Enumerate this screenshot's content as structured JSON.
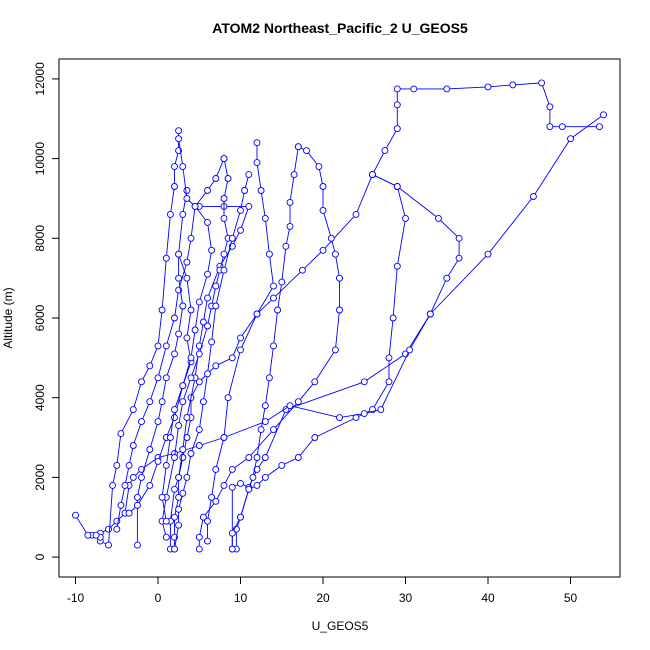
{
  "chart_data": {
    "type": "scatter",
    "title": "ATOM2 Northeast_Pacific_2 U_GEOS5",
    "xlabel": "U_GEOS5",
    "ylabel": "Altitude (m)",
    "xlim": [
      -12,
      56
    ],
    "ylim": [
      -500,
      12500
    ],
    "x_ticks": [
      -10,
      0,
      10,
      20,
      30,
      40,
      50
    ],
    "y_ticks": [
      0,
      2000,
      4000,
      6000,
      8000,
      10000,
      12000
    ],
    "grid": false,
    "color": "#0000ff",
    "series": [
      {
        "values": [
          [
            54,
            11100
          ],
          [
            50,
            10500
          ],
          [
            45.5,
            9050
          ],
          [
            40,
            7600
          ],
          [
            33,
            6100
          ],
          [
            30,
            5100
          ],
          [
            25,
            4400
          ],
          [
            15.5,
            3700
          ],
          [
            13,
            2500
          ],
          [
            12,
            2200
          ],
          [
            11,
            1750
          ],
          [
            10,
            1850
          ],
          [
            9,
            1750
          ],
          [
            9,
            200
          ]
        ]
      },
      {
        "values": [
          [
            53.5,
            10800
          ],
          [
            49,
            10800
          ],
          [
            47.5,
            10800
          ],
          [
            47.5,
            11300
          ],
          [
            46.5,
            11900
          ],
          [
            43,
            11850
          ],
          [
            40,
            11800
          ],
          [
            35,
            11750
          ],
          [
            31,
            11750
          ],
          [
            29,
            11750
          ],
          [
            29,
            11350
          ],
          [
            29,
            10750
          ],
          [
            27.5,
            10200
          ],
          [
            26,
            9600
          ],
          [
            24,
            8600
          ],
          [
            20,
            7700
          ],
          [
            17.5,
            7200
          ],
          [
            14,
            6500
          ],
          [
            12,
            6100
          ],
          [
            10,
            5500
          ],
          [
            9,
            5000
          ],
          [
            7,
            4800
          ],
          [
            5,
            4400
          ],
          [
            4,
            4000
          ],
          [
            4,
            3500
          ],
          [
            3.5,
            3000
          ],
          [
            3,
            2500
          ],
          [
            2.5,
            2000
          ],
          [
            2.5,
            1500
          ],
          [
            2,
            1000
          ],
          [
            2,
            500
          ],
          [
            2,
            200
          ]
        ]
      },
      {
        "values": [
          [
            26,
            9600
          ],
          [
            29,
            9300
          ],
          [
            30,
            8500
          ],
          [
            29,
            7300
          ],
          [
            28.5,
            6000
          ],
          [
            28,
            5000
          ],
          [
            28,
            4400
          ],
          [
            26,
            3700
          ],
          [
            24,
            3500
          ],
          [
            19,
            3000
          ],
          [
            17,
            2500
          ],
          [
            15,
            2300
          ],
          [
            13,
            2000
          ],
          [
            12,
            1800
          ],
          [
            11,
            1700
          ],
          [
            10,
            1000
          ],
          [
            9.5,
            700
          ],
          [
            9.5,
            200
          ]
        ]
      },
      {
        "values": [
          [
            26,
            9600
          ],
          [
            29,
            9300
          ],
          [
            34,
            8500
          ],
          [
            36.5,
            8000
          ],
          [
            36.5,
            7500
          ],
          [
            35,
            7000
          ],
          [
            33,
            6100
          ],
          [
            30.5,
            5200
          ],
          [
            27,
            3700
          ],
          [
            25,
            3600
          ],
          [
            22,
            3500
          ],
          [
            16,
            3800
          ],
          [
            13,
            3400
          ],
          [
            8,
            3000
          ],
          [
            5,
            2800
          ],
          [
            2,
            2600
          ],
          [
            0,
            2500
          ],
          [
            -2,
            2200
          ],
          [
            -3,
            2000
          ],
          [
            -3.5,
            1800
          ],
          [
            -4,
            1100
          ],
          [
            -5,
            900
          ],
          [
            -6,
            700
          ],
          [
            -7,
            600
          ],
          [
            -8,
            550
          ],
          [
            -8.5,
            550
          ],
          [
            -10,
            1050
          ]
        ]
      },
      {
        "values": [
          [
            2.5,
            10700
          ],
          [
            2.5,
            10200
          ],
          [
            2,
            9800
          ],
          [
            2,
            9300
          ],
          [
            1.5,
            8600
          ],
          [
            1,
            7500
          ],
          [
            0.5,
            6200
          ],
          [
            0,
            5300
          ],
          [
            -1,
            4800
          ],
          [
            -2,
            4400
          ],
          [
            -3,
            3700
          ],
          [
            -4.5,
            3100
          ],
          [
            -5,
            2300
          ],
          [
            -5.5,
            1800
          ],
          [
            -6,
            300
          ],
          [
            -7,
            400
          ],
          [
            -7,
            500
          ],
          [
            -7.5,
            550
          ]
        ]
      },
      {
        "values": [
          [
            5,
            8800
          ],
          [
            8,
            8800
          ],
          [
            11,
            8800
          ],
          [
            10,
            8200
          ],
          [
            9,
            7800
          ],
          [
            7.5,
            7300
          ],
          [
            6,
            6500
          ],
          [
            5.5,
            5900
          ],
          [
            5,
            5300
          ],
          [
            4.5,
            4500
          ],
          [
            3.5,
            3500
          ],
          [
            3,
            2700
          ],
          [
            2.5,
            2000
          ],
          [
            2,
            1700
          ],
          [
            1.5,
            900
          ],
          [
            1.5,
            200
          ]
        ]
      },
      {
        "values": [
          [
            8,
            10000
          ],
          [
            8.5,
            9500
          ],
          [
            8,
            9000
          ],
          [
            8,
            8500
          ],
          [
            8.5,
            8000
          ],
          [
            8,
            7600
          ],
          [
            7.5,
            7200
          ],
          [
            7,
            6800
          ],
          [
            6.5,
            6300
          ],
          [
            6,
            5800
          ],
          [
            5,
            5100
          ],
          [
            4,
            4500
          ],
          [
            3,
            3900
          ],
          [
            2.5,
            3300
          ],
          [
            2,
            2500
          ],
          [
            1,
            1500
          ],
          [
            0.5,
            900
          ],
          [
            1,
            500
          ]
        ]
      },
      {
        "values": [
          [
            17,
            10300
          ],
          [
            18,
            10200
          ],
          [
            19.5,
            9800
          ],
          [
            20,
            9300
          ],
          [
            20,
            8700
          ],
          [
            21,
            8000
          ],
          [
            21.5,
            7600
          ],
          [
            22,
            7000
          ],
          [
            22,
            6200
          ],
          [
            21.5,
            5200
          ],
          [
            19,
            4400
          ],
          [
            17,
            3900
          ],
          [
            14,
            3200
          ],
          [
            11,
            2500
          ],
          [
            9,
            2200
          ],
          [
            8,
            1800
          ],
          [
            7,
            1400
          ],
          [
            5.5,
            1000
          ],
          [
            5,
            500
          ],
          [
            5,
            200
          ]
        ]
      },
      {
        "values": [
          [
            17,
            10300
          ],
          [
            16.5,
            9600
          ],
          [
            16,
            8900
          ],
          [
            16,
            8300
          ],
          [
            15.5,
            7800
          ],
          [
            15,
            6900
          ],
          [
            14.5,
            6200
          ],
          [
            14,
            5300
          ],
          [
            13.5,
            4500
          ],
          [
            13,
            3800
          ],
          [
            12.5,
            3200
          ],
          [
            12,
            2500
          ],
          [
            11.5,
            2000
          ],
          [
            11,
            1700
          ],
          [
            10,
            1000
          ],
          [
            9,
            600
          ],
          [
            9,
            200
          ]
        ]
      },
      {
        "values": [
          [
            11,
            9600
          ],
          [
            10.5,
            9200
          ],
          [
            10,
            8700
          ],
          [
            9,
            8000
          ],
          [
            8,
            7200
          ],
          [
            7,
            6300
          ],
          [
            6.5,
            5400
          ],
          [
            6,
            4600
          ],
          [
            5.5,
            3900
          ],
          [
            5,
            3200
          ],
          [
            4,
            2600
          ],
          [
            3.5,
            2000
          ],
          [
            3,
            1600
          ],
          [
            2.5,
            1200
          ],
          [
            2.5,
            800
          ],
          [
            2,
            200
          ]
        ]
      },
      {
        "values": [
          [
            8,
            10000
          ],
          [
            7,
            9500
          ],
          [
            6,
            9200
          ],
          [
            4.5,
            8800
          ],
          [
            4,
            8000
          ],
          [
            3.5,
            7400
          ],
          [
            2.5,
            6700
          ],
          [
            2,
            6000
          ],
          [
            1,
            5300
          ],
          [
            0,
            4500
          ],
          [
            -1,
            3900
          ],
          [
            -2,
            3400
          ],
          [
            -3,
            2800
          ],
          [
            -3.5,
            2300
          ],
          [
            -4,
            1800
          ],
          [
            -4.5,
            1300
          ],
          [
            -5,
            700
          ]
        ]
      },
      {
        "values": [
          [
            3.5,
            9200
          ],
          [
            3,
            8600
          ],
          [
            2.5,
            7600
          ],
          [
            2.5,
            7000
          ],
          [
            3,
            6300
          ],
          [
            2.5,
            5600
          ],
          [
            2,
            5100
          ],
          [
            1,
            4500
          ],
          [
            0.5,
            3900
          ],
          [
            0,
            3400
          ],
          [
            -1,
            2700
          ],
          [
            -2,
            2000
          ],
          [
            -2.5,
            1500
          ],
          [
            -2.5,
            300
          ]
        ]
      },
      {
        "values": [
          [
            2.5,
            7600
          ],
          [
            3.5,
            7000
          ],
          [
            4,
            6200
          ],
          [
            3.5,
            5500
          ],
          [
            4,
            4900
          ],
          [
            3,
            4300
          ],
          [
            2,
            3500
          ],
          [
            1,
            3000
          ],
          [
            0,
            2400
          ],
          [
            -1,
            1800
          ],
          [
            -2.5,
            1300
          ],
          [
            -3.5,
            1100
          ]
        ]
      },
      {
        "values": [
          [
            12,
            10400
          ],
          [
            12,
            9900
          ],
          [
            12.5,
            9200
          ],
          [
            13,
            8500
          ],
          [
            13.5,
            7600
          ],
          [
            14,
            6800
          ],
          [
            12,
            6100
          ],
          [
            10,
            5200
          ],
          [
            8.5,
            4000
          ],
          [
            8,
            3000
          ],
          [
            7,
            2200
          ],
          [
            6.5,
            1500
          ],
          [
            6,
            900
          ],
          [
            6,
            400
          ]
        ]
      },
      {
        "values": [
          [
            2.5,
            10500
          ],
          [
            3,
            9800
          ],
          [
            3.5,
            9000
          ],
          [
            4.5,
            8800
          ],
          [
            6,
            8400
          ],
          [
            6.5,
            7700
          ],
          [
            6,
            7100
          ],
          [
            5,
            6400
          ],
          [
            4.5,
            5700
          ],
          [
            4,
            5000
          ],
          [
            3,
            4300
          ],
          [
            2,
            3700
          ],
          [
            1.5,
            3000
          ],
          [
            1,
            2300
          ],
          [
            0.5,
            1500
          ],
          [
            1,
            900
          ]
        ]
      }
    ]
  }
}
